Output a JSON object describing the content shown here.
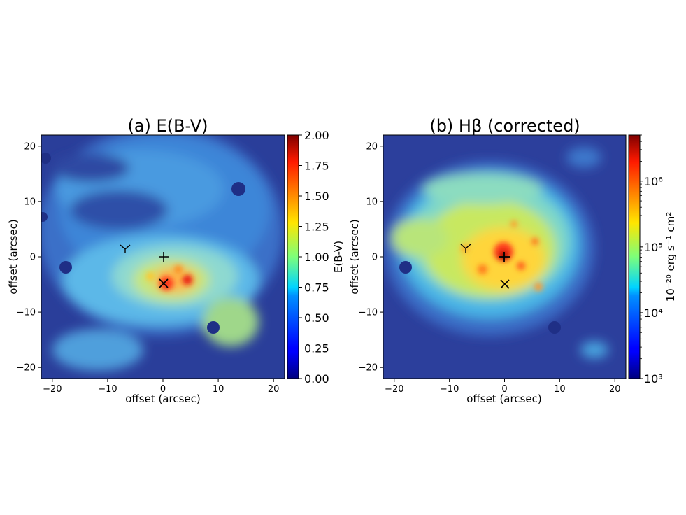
{
  "chart_data": [
    {
      "type": "heatmap",
      "title": "(a) E(B-V)",
      "xlabel": "offset (arcsec)",
      "ylabel": "offset (arcsec)",
      "xlim": [
        -22,
        22
      ],
      "ylim": [
        -22,
        22
      ],
      "xticks": [
        "−20",
        "−10",
        "0",
        "10",
        "20"
      ],
      "yticks": [
        "−20",
        "−10",
        "0",
        "10",
        "20"
      ],
      "colorbar": {
        "label": "E(B-V)",
        "range": [
          0.0,
          2.0
        ],
        "ticks": [
          "0.00",
          "0.25",
          "0.50",
          "0.75",
          "1.00",
          "1.25",
          "1.50",
          "1.75",
          "2.00"
        ]
      },
      "colormap": "jet",
      "markers": [
        {
          "symbol": "+",
          "x": 0,
          "y": 0
        },
        {
          "symbol": "×",
          "x": 0,
          "y": -5
        },
        {
          "symbol": "Y",
          "x": -7,
          "y": 1.5
        }
      ]
    },
    {
      "type": "heatmap",
      "title": "(b) Hβ (corrected)",
      "xlabel": "offset (arcsec)",
      "ylabel": "offset (arcsec)",
      "xlim": [
        -22,
        22
      ],
      "ylim": [
        -22,
        22
      ],
      "xticks": [
        "−20",
        "−10",
        "0",
        "10",
        "20"
      ],
      "yticks": [
        "−20",
        "−10",
        "0",
        "10",
        "20"
      ],
      "colorbar": {
        "label": "10⁻²⁰ erg s⁻¹ cm²",
        "scale": "log",
        "range": [
          1000,
          5000000
        ],
        "ticks": [
          "10³",
          "10⁴",
          "10⁵",
          "10⁶"
        ]
      },
      "colormap": "jet",
      "markers": [
        {
          "symbol": "+",
          "x": 0,
          "y": 0
        },
        {
          "symbol": "×",
          "x": 0,
          "y": -5
        },
        {
          "symbol": "Y",
          "x": -7,
          "y": 1.5
        }
      ]
    }
  ]
}
